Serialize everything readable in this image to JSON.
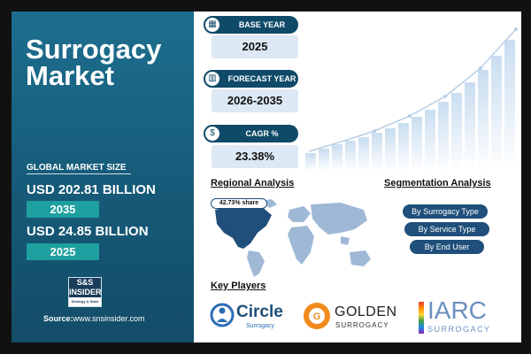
{
  "title_line1": "Surrogacy",
  "title_line2": "Market",
  "global_market_size_label": "GLOBAL MARKET SIZE",
  "market_value_1": "USD 202.81 BILLION",
  "market_year_1": "2035",
  "market_value_2": "USD 24.85 BILLION",
  "market_year_2": "2025",
  "logo_top": "S&S INSIDER",
  "logo_bottom": "Strategy & Stats",
  "source_label": "Source:",
  "source_url": "www.snsinsider.com",
  "base_year": {
    "label": "BASE YEAR",
    "value": "2025",
    "icon": "calendar-icon"
  },
  "forecast_year": {
    "label": "FORECAST YEAR",
    "value": "2026-2035",
    "icon": "chart-icon"
  },
  "cagr": {
    "label": "CAGR %",
    "value": "23.38%",
    "icon": "coins-icon"
  },
  "regional_analysis_title": "Regional Analysis",
  "regional_share": "42.73% share",
  "segmentation_title": "Segmentation Analysis",
  "segments": [
    "By Surrogacy Type",
    "By Service Type",
    "By End User"
  ],
  "key_players_title": "Key Players",
  "players": {
    "circle": {
      "name": "Circle",
      "sub": "Surrogacy"
    },
    "golden": {
      "name": "GOLDEN",
      "sub": "SURROGACY"
    },
    "iarc": {
      "name": "IARC",
      "sub": "SURROGACY"
    }
  },
  "colors": {
    "panel": "#165a78",
    "accent": "#1fa0a0",
    "navy": "#0f4a68"
  }
}
